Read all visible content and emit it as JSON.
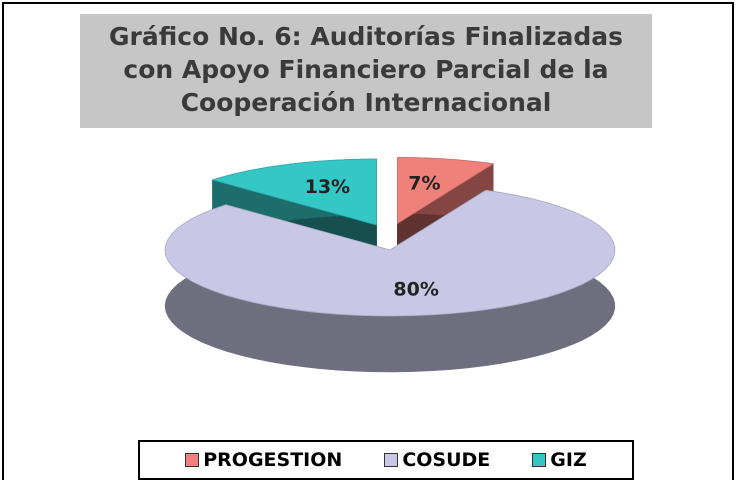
{
  "chart_data": {
    "type": "pie",
    "title": "Gráfico No. 6: Auditorías Finalizadas con Apoyo Financiero Parcial de la Cooperación Internacional",
    "categories": [
      "PROGESTION",
      "COSUDE",
      "GIZ"
    ],
    "values": [
      7,
      80,
      13
    ],
    "value_labels": [
      "7%",
      "80%",
      "13%"
    ],
    "colors": [
      "#f0807a",
      "#c8c8e6",
      "#35c6c6"
    ],
    "legend": "bottom"
  }
}
